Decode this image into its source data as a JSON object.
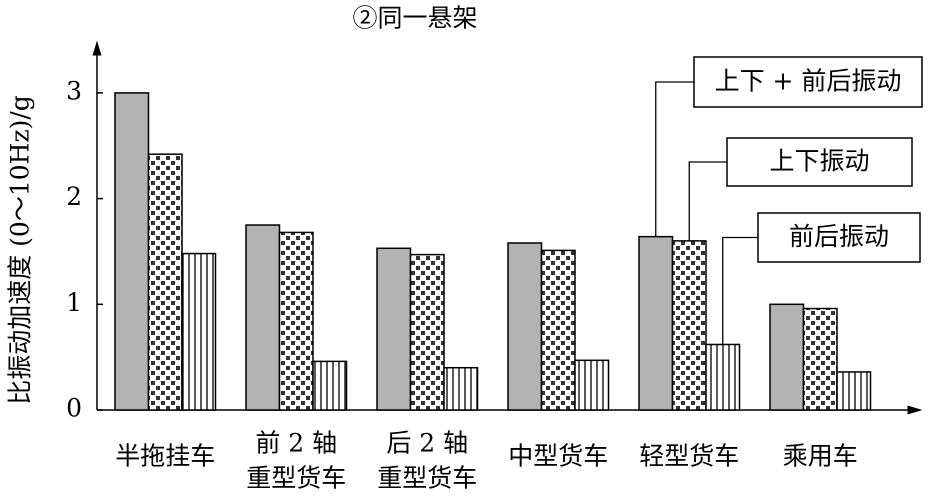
{
  "chart_data": {
    "type": "bar",
    "title": "②同一悬架",
    "y_label": "比振动加速度 (0～10Hz)/g",
    "categories": [
      [
        "半拖挂车"
      ],
      [
        "前 2 轴",
        "重型货车"
      ],
      [
        "后 2 轴",
        "重型货车"
      ],
      [
        "中型货车"
      ],
      [
        "轻型货车"
      ],
      [
        "乘用车"
      ]
    ],
    "series": [
      {
        "name": "上下 + 前后振动",
        "color": "#b3b3b3",
        "values": [
          3.0,
          1.75,
          1.53,
          1.58,
          1.64,
          1.0
        ]
      },
      {
        "name": "上下振动",
        "color": "checker",
        "values": [
          2.42,
          1.68,
          1.47,
          1.51,
          1.6,
          0.96
        ]
      },
      {
        "name": "前后振动",
        "color": "stripes",
        "values": [
          1.48,
          0.46,
          0.4,
          0.47,
          0.62,
          0.36
        ]
      }
    ],
    "ylim": [
      0,
      3.4
    ],
    "yticks": [
      0,
      1,
      2,
      3
    ],
    "grid": false
  }
}
